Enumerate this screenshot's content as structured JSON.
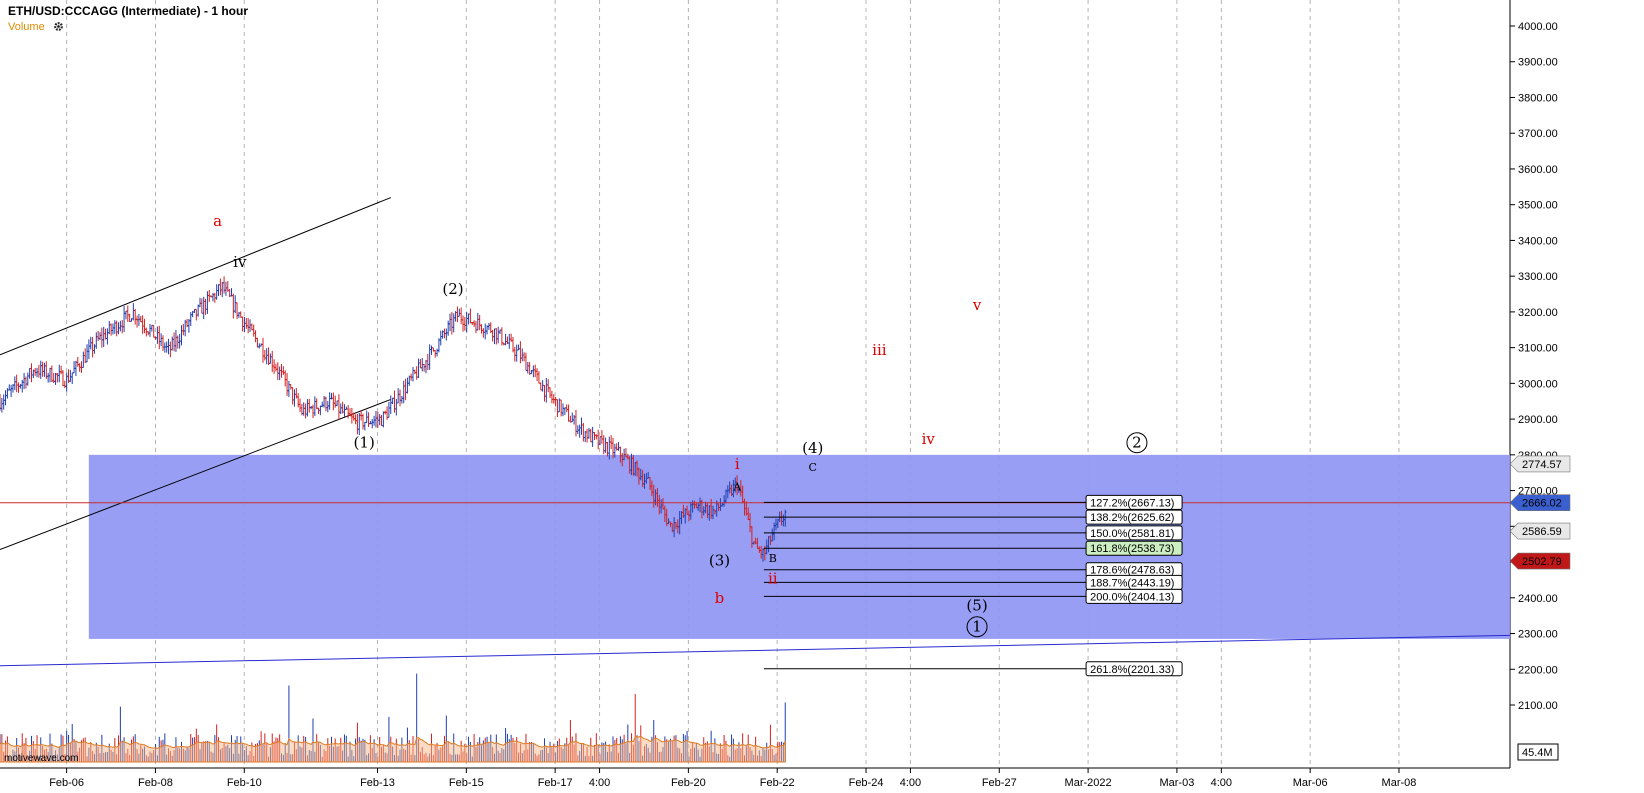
{
  "header": {
    "title": "ETH/USD:CCCAGG (Intermediate) - 1 hour",
    "volume_label": "Volume",
    "gear_icon": "gear-icon"
  },
  "watermark": "motivewave.com",
  "colors": {
    "zone": "#8f97f3",
    "bull": "#1f3fb0",
    "bear": "#d42020",
    "wave_red": "#e00000",
    "price_line": "#cc2a2a",
    "channel_blue": "#2a2ad0",
    "fib_highlight": "#cdeec0",
    "tag_blue": "#3a5fcf",
    "tag_red": "#c01818",
    "tag_gray": "#e8e8e8"
  },
  "chart_data": {
    "type": "candlestick",
    "symbol": "ETH/USD:CCCAGG",
    "timeframe": "1 hour",
    "y_axis": {
      "side": "right",
      "ylim": [
        2000,
        4100
      ],
      "ticks": [
        2100,
        2200,
        2300,
        2400,
        2500,
        2600,
        2700,
        2800,
        2900,
        3000,
        3100,
        3200,
        3300,
        3400,
        3500,
        3600,
        3700,
        3800,
        3900,
        4000
      ],
      "tick_labels": [
        "2100.00",
        "2200.00",
        "2300.00",
        "2400.00",
        "2500.00",
        "2600.00",
        "2700.00",
        "2800.00",
        "2900.00",
        "3000.00",
        "3100.00",
        "3200.00",
        "3300.00",
        "3400.00",
        "3500.00",
        "3600.00",
        "3700.00",
        "3800.00",
        "3900.00",
        "4000.00"
      ]
    },
    "x_axis": {
      "tick_labels": [
        "Feb-06",
        "Feb-08",
        "Feb-10",
        "Feb-13",
        "Feb-15",
        "Feb-17",
        "4:00",
        "Feb-20",
        "Feb-22",
        "Feb-24",
        "4:00",
        "Feb-27",
        "Mar-2022",
        "Mar-03",
        "4:00",
        "Mar-06",
        "Mar-08"
      ],
      "tick_index": [
        1.5,
        3.5,
        5.5,
        8.5,
        10.5,
        12.5,
        13.5,
        15.5,
        17.5,
        19.5,
        20.5,
        22.5,
        24.5,
        26.5,
        27.5,
        29.5,
        31.5
      ],
      "day_range": [
        0,
        34
      ]
    },
    "grid": true,
    "price_path": {
      "day": [
        0,
        0.8,
        1.5,
        2.2,
        3.0,
        3.8,
        4.3,
        5.0,
        5.6,
        6.2,
        6.8,
        7.4,
        8.0,
        8.6,
        9.2,
        9.8,
        10.3,
        11.1,
        11.7,
        12.4,
        13.0,
        13.4,
        14.0,
        14.6,
        15.1,
        15.7,
        16.1,
        16.6,
        17.0,
        17.2,
        17.4,
        17.7
      ],
      "price": [
        2950,
        3040,
        3010,
        3120,
        3200,
        3090,
        3180,
        3270,
        3150,
        3050,
        2920,
        2950,
        2890,
        2900,
        3000,
        3100,
        3190,
        3150,
        3080,
        2960,
        2880,
        2840,
        2800,
        2720,
        2600,
        2660,
        2640,
        2720,
        2540,
        2520,
        2580,
        2640
      ]
    },
    "current_price": 2666.02,
    "price_tags": [
      {
        "value": 2774.57,
        "text": "2774.57",
        "style": "gray"
      },
      {
        "value": 2666.02,
        "text": "2666.02",
        "style": "blue"
      },
      {
        "value": 2586.59,
        "text": "2586.59",
        "style": "gray"
      },
      {
        "value": 2502.79,
        "text": "2502.79",
        "style": "red"
      }
    ],
    "volume": {
      "scale_label": "45.4M",
      "max_spikes": [
        {
          "day": 6.5,
          "value": 45
        },
        {
          "day": 9.4,
          "value": 52
        },
        {
          "day": 14.3,
          "value": 40
        },
        {
          "day": 17.7,
          "value": 35
        }
      ]
    },
    "target_zone": {
      "day_range": [
        2.0,
        34
      ],
      "price_range": [
        2285,
        2800
      ]
    },
    "fib_levels": [
      {
        "label": "127.2%(2667.13)",
        "value": 2667.13
      },
      {
        "label": "138.2%(2625.62)",
        "value": 2625.62
      },
      {
        "label": "150.0%(2581.81)",
        "value": 2581.81
      },
      {
        "label": "161.8%(2538.73)",
        "value": 2538.73,
        "highlight": true
      },
      {
        "label": "178.6%(2478.63)",
        "value": 2478.63
      },
      {
        "label": "188.7%(2443.19)",
        "value": 2443.19
      },
      {
        "label": "200.0%(2404.13)",
        "value": 2404.13
      },
      {
        "label": "261.8%(2201.33)",
        "value": 2201.33
      }
    ],
    "fib_day_range": [
      17.2,
      24.5
    ],
    "channels": [
      {
        "color": "black",
        "points": [
          [
            0,
            3080
          ],
          [
            8.8,
            3520
          ]
        ]
      },
      {
        "color": "black",
        "points": [
          [
            0,
            2535
          ],
          [
            8.8,
            2955
          ]
        ]
      },
      {
        "color": "blue",
        "points": [
          [
            0,
            2210
          ],
          [
            34,
            2295
          ]
        ]
      }
    ],
    "wave_labels": [
      {
        "text": "a",
        "day": 4.9,
        "price": 3440,
        "color": "red"
      },
      {
        "text": "iv",
        "day": 5.4,
        "price": 3325,
        "color": "black"
      },
      {
        "text": "(2)",
        "day": 10.2,
        "price": 3250,
        "color": "black"
      },
      {
        "text": "(1)",
        "day": 8.2,
        "price": 2820,
        "color": "black"
      },
      {
        "text": "(3)",
        "day": 16.2,
        "price": 2490,
        "color": "black"
      },
      {
        "text": "b",
        "day": 16.2,
        "price": 2385,
        "color": "red"
      },
      {
        "text": "i",
        "day": 16.6,
        "price": 2760,
        "color": "red"
      },
      {
        "text": "A",
        "day": 16.6,
        "price": 2700,
        "color": "black"
      },
      {
        "text": "B",
        "day": 17.4,
        "price": 2500,
        "color": "black"
      },
      {
        "text": "ii",
        "day": 17.4,
        "price": 2440,
        "color": "red"
      },
      {
        "text": "(4)",
        "day": 18.3,
        "price": 2805,
        "color": "black"
      },
      {
        "text": "C",
        "day": 18.3,
        "price": 2755,
        "color": "black"
      },
      {
        "text": "iii",
        "day": 19.8,
        "price": 3080,
        "color": "red"
      },
      {
        "text": "v",
        "day": 22.0,
        "price": 3205,
        "color": "red"
      },
      {
        "text": "iv",
        "day": 20.9,
        "price": 2830,
        "color": "red"
      },
      {
        "text": "(5)",
        "day": 22.0,
        "price": 2365,
        "color": "black"
      },
      {
        "text": "1",
        "day": 22.0,
        "price": 2305,
        "color": "black",
        "circled": true
      },
      {
        "text": "2",
        "day": 25.6,
        "price": 2820,
        "color": "black",
        "circled": true
      }
    ]
  }
}
